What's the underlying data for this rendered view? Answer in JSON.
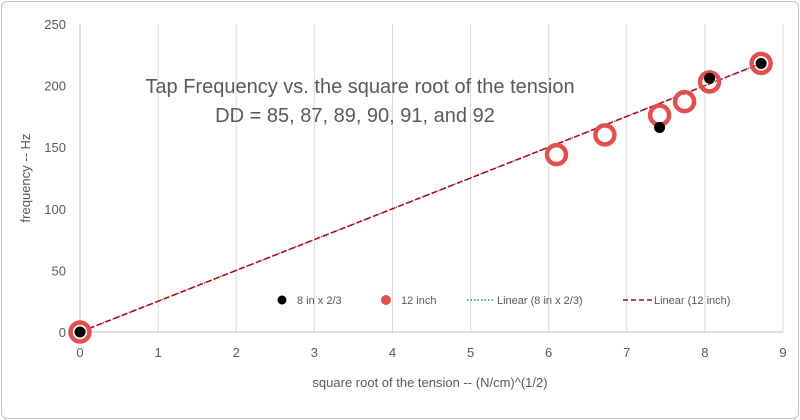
{
  "chart_data": {
    "type": "scatter",
    "title": "",
    "annotation": {
      "line1": "Tap Frequency vs. the square root of the tension",
      "line2": "DD = 85, 87, 89, 90, 91, and 92"
    },
    "xlabel": "square root of the tension -- (N/cm)^(1/2)",
    "ylabel": "frequency -- Hz",
    "xlim": [
      0,
      9
    ],
    "ylim": [
      0,
      250
    ],
    "xticks": [
      0,
      1,
      2,
      3,
      4,
      5,
      6,
      7,
      8,
      9
    ],
    "yticks": [
      0,
      50,
      100,
      150,
      200,
      250
    ],
    "grid": "vertical",
    "legend_position": "bottom",
    "series": [
      {
        "name": "8 in x 2/3",
        "marker": "filled-circle",
        "color": "#000000",
        "points": [
          [
            0,
            0
          ],
          [
            7.42,
            166
          ],
          [
            8.06,
            206
          ],
          [
            8.72,
            218
          ]
        ]
      },
      {
        "name": "12 inch",
        "marker": "ring",
        "color": "#e05050",
        "points": [
          [
            0,
            0
          ],
          [
            6.1,
            144
          ],
          [
            6.72,
            160
          ],
          [
            7.42,
            176
          ],
          [
            7.74,
            187
          ],
          [
            8.06,
            203
          ],
          [
            8.72,
            218
          ]
        ]
      }
    ],
    "trendlines": [
      {
        "name": "Linear (8 in x 2/3)",
        "style": "dotted",
        "color": "#4472c4",
        "slope": 25.0
      },
      {
        "name": "Linear (12 inch)",
        "style": "dashed",
        "color": "#c00000",
        "slope": 25.0
      }
    ]
  }
}
